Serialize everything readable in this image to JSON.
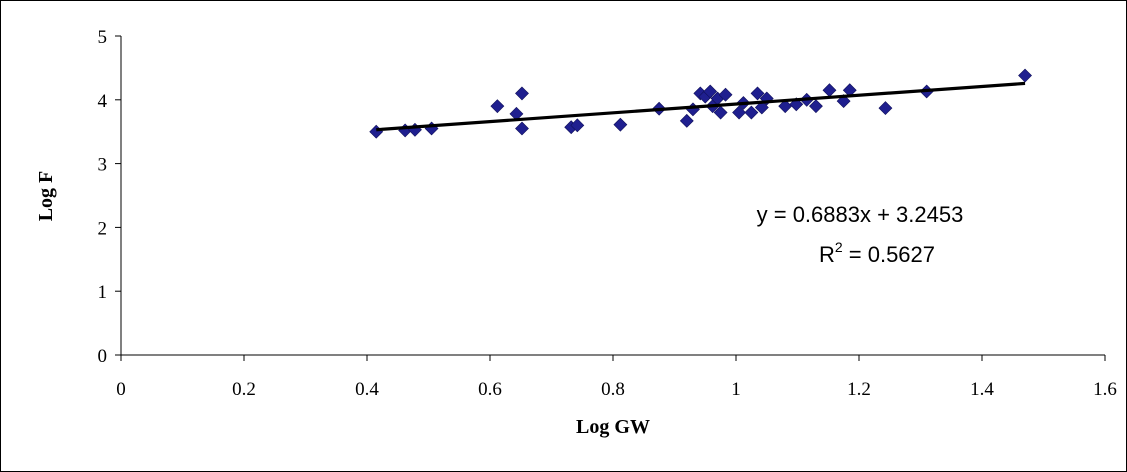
{
  "chart_data": {
    "type": "scatter",
    "xlabel": "Log GW",
    "ylabel": "Log F",
    "xlim": [
      0,
      1.6
    ],
    "ylim": [
      0,
      5
    ],
    "x_ticks": [
      "0",
      "0.2",
      "0.4",
      "0.6",
      "0.8",
      "1",
      "1.2",
      "1.4",
      "1.6"
    ],
    "y_ticks": [
      "0",
      "1",
      "2",
      "3",
      "4",
      "5"
    ],
    "grid": false,
    "marker_color": "#1F1F8F",
    "line_color": "#000000",
    "points": [
      [
        0.415,
        3.5
      ],
      [
        0.462,
        3.52
      ],
      [
        0.478,
        3.53
      ],
      [
        0.505,
        3.55
      ],
      [
        0.612,
        3.9
      ],
      [
        0.643,
        3.78
      ],
      [
        0.652,
        4.1
      ],
      [
        0.652,
        3.55
      ],
      [
        0.732,
        3.57
      ],
      [
        0.742,
        3.6
      ],
      [
        0.812,
        3.61
      ],
      [
        0.875,
        3.86
      ],
      [
        0.92,
        3.67
      ],
      [
        0.93,
        3.85
      ],
      [
        0.942,
        4.1
      ],
      [
        0.95,
        4.05
      ],
      [
        0.958,
        4.13
      ],
      [
        0.962,
        3.9
      ],
      [
        0.97,
        4.02
      ],
      [
        0.975,
        3.8
      ],
      [
        0.983,
        4.08
      ],
      [
        1.005,
        3.8
      ],
      [
        1.012,
        3.95
      ],
      [
        1.025,
        3.8
      ],
      [
        1.035,
        4.1
      ],
      [
        1.042,
        3.88
      ],
      [
        1.05,
        4.02
      ],
      [
        1.08,
        3.9
      ],
      [
        1.098,
        3.93
      ],
      [
        1.115,
        4.0
      ],
      [
        1.13,
        3.9
      ],
      [
        1.152,
        4.15
      ],
      [
        1.175,
        3.98
      ],
      [
        1.185,
        4.15
      ],
      [
        1.243,
        3.87
      ],
      [
        1.31,
        4.13
      ],
      [
        1.47,
        4.38
      ]
    ],
    "trendline": {
      "slope": 0.6883,
      "intercept": 3.2453,
      "x_range": [
        0.415,
        1.47
      ],
      "equation": "y = 0.6883x + 3.2453",
      "r2_prefix": "R",
      "r2_sup": "2",
      "r2_value": " = 0.5627"
    }
  }
}
